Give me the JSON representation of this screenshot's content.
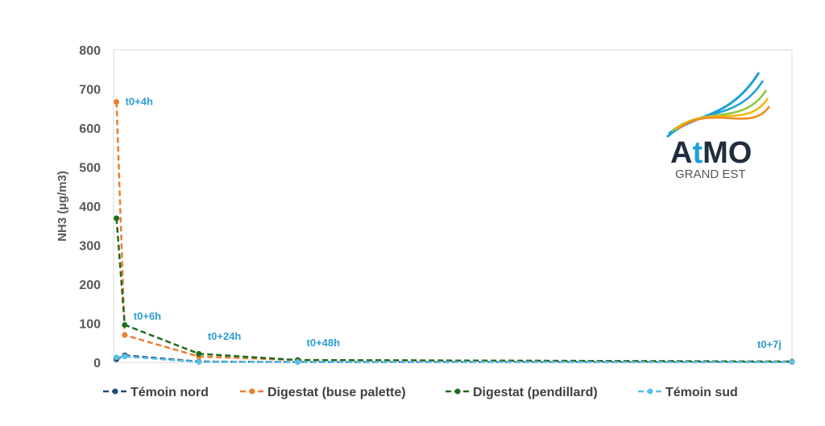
{
  "chart_data": {
    "type": "line",
    "ylabel": "NH3 (µg/m3)",
    "xlabel": "",
    "title": "",
    "ylim": [
      0,
      800
    ],
    "yticks": [
      0,
      100,
      200,
      300,
      400,
      500,
      600,
      700,
      800
    ],
    "grid": false,
    "legend": "bottom",
    "x_hours": [
      4,
      6,
      24,
      48,
      168
    ],
    "series": [
      {
        "name": "Témoin nord",
        "color": "#1f4e79",
        "values": [
          8,
          18,
          2,
          1,
          1
        ]
      },
      {
        "name": "Digestat (buse palette)",
        "color": "#ed7d31",
        "values": [
          667,
          70,
          15,
          6,
          2
        ]
      },
      {
        "name": "Digestat (pendillard)",
        "color": "#1e6b1e",
        "values": [
          369,
          96,
          22,
          6,
          2
        ]
      },
      {
        "name": "Témoin sud",
        "color": "#5bc0eb",
        "values": [
          13,
          15,
          1,
          1,
          1
        ]
      }
    ],
    "annotations": [
      {
        "text": "t0+4h",
        "x_hour": 4,
        "y": 667
      },
      {
        "text": "t0+6h",
        "x_hour": 6,
        "y": 118
      },
      {
        "text": "t0+24h",
        "x_hour": 24,
        "y": 66
      },
      {
        "text": "t0+48h",
        "x_hour": 48,
        "y": 49
      },
      {
        "text": "t0+7j",
        "x_hour": 168,
        "y": 45
      }
    ],
    "annotation_color": "#2e9fd1"
  },
  "logo": {
    "text_a": "A",
    "text_t": "t",
    "text_mo": "MO",
    "subtitle": "GRAND EST",
    "color_dark": "#1f2d3d",
    "color_accent": "#1aa0d8"
  }
}
